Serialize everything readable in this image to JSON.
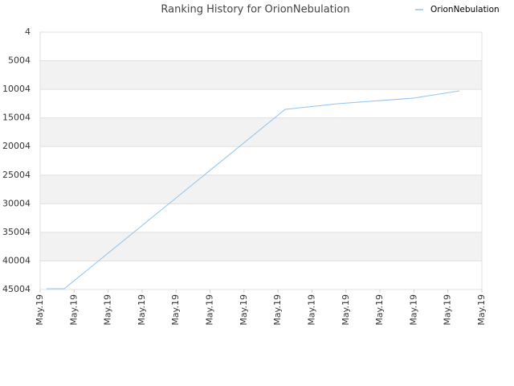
{
  "chart_data": {
    "type": "line",
    "title": "Ranking History for OrionNebulation",
    "x": [
      0.19,
      0.71,
      7.21,
      8.75,
      10.99,
      12.34
    ],
    "series": [
      {
        "name": "OrionNebulation",
        "color": "#90c4f0",
        "values": [
          44864,
          44864,
          13504,
          12519,
          11535,
          10270
        ]
      }
    ],
    "xlim": [
      0,
      13
    ],
    "xticks": [
      {
        "value": 0,
        "label": "May.19"
      },
      {
        "value": 1,
        "label": "May.19"
      },
      {
        "value": 2,
        "label": "May.19"
      },
      {
        "value": 3,
        "label": "May.19"
      },
      {
        "value": 4,
        "label": "May.19"
      },
      {
        "value": 5,
        "label": "May.19"
      },
      {
        "value": 6,
        "label": "May.19"
      },
      {
        "value": 7,
        "label": "May.19"
      },
      {
        "value": 8,
        "label": "May.19"
      },
      {
        "value": 9,
        "label": "May.19"
      },
      {
        "value": 10,
        "label": "May.19"
      },
      {
        "value": 11,
        "label": "May.19"
      },
      {
        "value": 12,
        "label": "May.19"
      },
      {
        "value": 13,
        "label": "May.19"
      }
    ],
    "ylim": [
      4,
      45004
    ],
    "y_inverted": true,
    "yticks": [
      4,
      5004,
      10004,
      15004,
      20004,
      25004,
      30004,
      35004,
      40004,
      45004
    ],
    "grid": true,
    "legend": "top-right"
  }
}
